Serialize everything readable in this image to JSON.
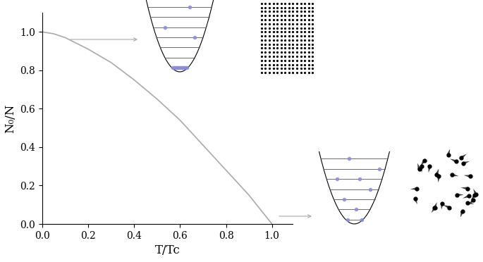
{
  "chart_data": {
    "type": "line",
    "x": [
      0.0,
      0.05,
      0.1,
      0.2,
      0.3,
      0.4,
      0.5,
      0.6,
      0.7,
      0.8,
      0.9,
      1.0
    ],
    "values": [
      1.0,
      0.99,
      0.97,
      0.91,
      0.84,
      0.75,
      0.65,
      0.54,
      0.41,
      0.28,
      0.15,
      0.0
    ],
    "color": "#aaaaaa",
    "xlabel": "T/Tc",
    "ylabel": "N₀/N",
    "xlim": [
      0.0,
      1.09
    ],
    "ylim": [
      0.0,
      1.1
    ],
    "xticks": [
      0.0,
      0.2,
      0.4,
      0.6,
      0.8,
      1.0
    ],
    "yticks": [
      0.0,
      0.2,
      0.4,
      0.6,
      0.8,
      1.0
    ],
    "grid": false
  }
}
